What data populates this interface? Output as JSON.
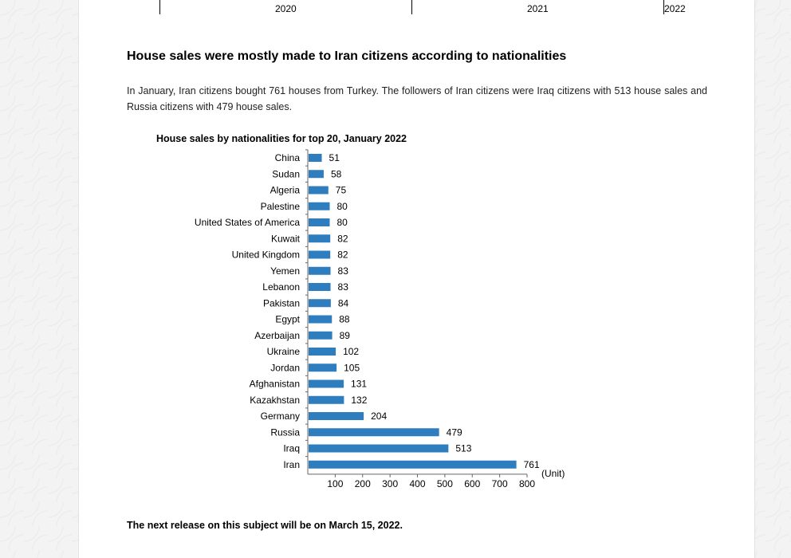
{
  "timeline": {
    "years": [
      "2020",
      "2021",
      "2022"
    ]
  },
  "article": {
    "headline": "House sales were mostly made to Iran citizens according to nationalities",
    "paragraph": "In January, Iran citizens bought 761 houses from Turkey. The followers of Iran citizens were Iraq citizens with 513 house sales and Russia citizens with 479 house sales.",
    "footer": "The next release on this subject will be on March 15, 2022."
  },
  "colors": {
    "bar": "#2e7dbf"
  },
  "chart_data": {
    "type": "bar",
    "orientation": "horizontal",
    "title": "House sales by nationalities for top 20, January 2022",
    "unit_label": "(Unit)",
    "categories": [
      "China",
      "Sudan",
      "Algeria",
      "Palestine",
      "United States of America",
      "Kuwait",
      "United Kingdom",
      "Yemen",
      "Lebanon",
      "Pakistan",
      "Egypt",
      "Azerbaijan",
      "Ukraine",
      "Jordan",
      "Afghanistan",
      "Kazakhstan",
      "Germany",
      "Russia",
      "Iraq",
      "Iran"
    ],
    "values": [
      51,
      58,
      75,
      80,
      80,
      82,
      82,
      83,
      83,
      84,
      88,
      89,
      102,
      105,
      131,
      132,
      204,
      479,
      513,
      761
    ],
    "xlim": [
      0,
      800
    ],
    "xticks": [
      100,
      200,
      300,
      400,
      500,
      600,
      700,
      800
    ],
    "grid": false,
    "legend": "none"
  }
}
